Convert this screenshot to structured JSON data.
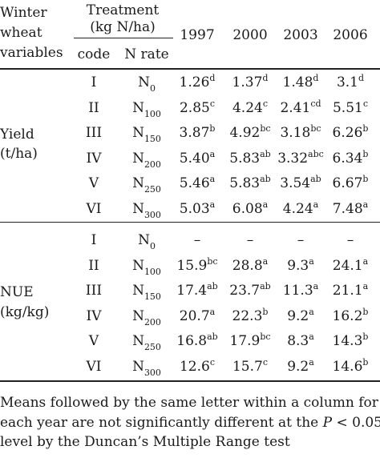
{
  "header": {
    "variables_label": [
      "Winter",
      "wheat",
      "variables"
    ],
    "treatment_title": [
      "Treatment",
      "(kg N/ha)"
    ],
    "code_label": "code",
    "nrate_label": "N rate",
    "years": [
      "1997",
      "2000",
      "2003",
      "2006"
    ]
  },
  "groups": [
    {
      "label": [
        "Yield",
        "(t/ha)"
      ],
      "rows": [
        {
          "code": "I",
          "n_base": "N",
          "n_sub": "0",
          "cells": [
            {
              "v": "1.26",
              "s": "d"
            },
            {
              "v": "1.37",
              "s": "d"
            },
            {
              "v": "1.48",
              "s": "d"
            },
            {
              "v": "3.1",
              "s": "d"
            }
          ]
        },
        {
          "code": "II",
          "n_base": "N",
          "n_sub": "100",
          "cells": [
            {
              "v": "2.85",
              "s": "c"
            },
            {
              "v": "4.24",
              "s": "c"
            },
            {
              "v": "2.41",
              "s": "cd"
            },
            {
              "v": "5.51",
              "s": "c"
            }
          ]
        },
        {
          "code": "III",
          "n_base": "N",
          "n_sub": "150",
          "cells": [
            {
              "v": "3.87",
              "s": "b"
            },
            {
              "v": "4.92",
              "s": "bc"
            },
            {
              "v": "3.18",
              "s": "bc"
            },
            {
              "v": "6.26",
              "s": "b"
            }
          ]
        },
        {
          "code": "IV",
          "n_base": "N",
          "n_sub": "200",
          "cells": [
            {
              "v": "5.40",
              "s": "a"
            },
            {
              "v": "5.83",
              "s": "ab"
            },
            {
              "v": "3.32",
              "s": "abc"
            },
            {
              "v": "6.34",
              "s": "b"
            }
          ]
        },
        {
          "code": "V",
          "n_base": "N",
          "n_sub": "250",
          "cells": [
            {
              "v": "5.46",
              "s": "a"
            },
            {
              "v": "5.83",
              "s": "ab"
            },
            {
              "v": "3.54",
              "s": "ab"
            },
            {
              "v": "6.67",
              "s": "b"
            }
          ]
        },
        {
          "code": "VI",
          "n_base": "N",
          "n_sub": "300",
          "cells": [
            {
              "v": "5.03",
              "s": "a"
            },
            {
              "v": "6.08",
              "s": "a"
            },
            {
              "v": "4.24",
              "s": "a"
            },
            {
              "v": "7.48",
              "s": "a"
            }
          ]
        }
      ]
    },
    {
      "label": [
        "NUE",
        "(kg/kg)"
      ],
      "rows": [
        {
          "code": "I",
          "n_base": "N",
          "n_sub": "0",
          "cells": [
            {
              "v": "–",
              "s": ""
            },
            {
              "v": "–",
              "s": ""
            },
            {
              "v": "–",
              "s": ""
            },
            {
              "v": "–",
              "s": ""
            }
          ]
        },
        {
          "code": "II",
          "n_base": "N",
          "n_sub": "100",
          "cells": [
            {
              "v": "15.9",
              "s": "bc"
            },
            {
              "v": "28.8",
              "s": "a"
            },
            {
              "v": "9.3",
              "s": "a"
            },
            {
              "v": "24.1",
              "s": "a"
            }
          ]
        },
        {
          "code": "III",
          "n_base": "N",
          "n_sub": "150",
          "cells": [
            {
              "v": "17.4",
              "s": "ab"
            },
            {
              "v": "23.7",
              "s": "ab"
            },
            {
              "v": "11.3",
              "s": "a"
            },
            {
              "v": "21.1",
              "s": "a"
            }
          ]
        },
        {
          "code": "IV",
          "n_base": "N",
          "n_sub": "200",
          "cells": [
            {
              "v": "20.7",
              "s": "a"
            },
            {
              "v": "22.3",
              "s": "b"
            },
            {
              "v": "9.2",
              "s": "a"
            },
            {
              "v": "16.2",
              "s": "b"
            }
          ]
        },
        {
          "code": "V",
          "n_base": "N",
          "n_sub": "250",
          "cells": [
            {
              "v": "16.8",
              "s": "ab"
            },
            {
              "v": "17.9",
              "s": "bc"
            },
            {
              "v": "8.3",
              "s": "a"
            },
            {
              "v": "14.3",
              "s": "b"
            }
          ]
        },
        {
          "code": "VI",
          "n_base": "N",
          "n_sub": "300",
          "cells": [
            {
              "v": "12.6",
              "s": "c"
            },
            {
              "v": "15.7",
              "s": "c"
            },
            {
              "v": "9.2",
              "s": "a"
            },
            {
              "v": "14.6",
              "s": "b"
            }
          ]
        }
      ]
    }
  ],
  "footnote": {
    "line1": "Means followed by the same letter within a column for",
    "line2_pre": "each year are not significantly different at the ",
    "line2_p": "P",
    "line2_post": " < 0.05",
    "line3": "level by the Duncan’s Multiple Range test"
  }
}
